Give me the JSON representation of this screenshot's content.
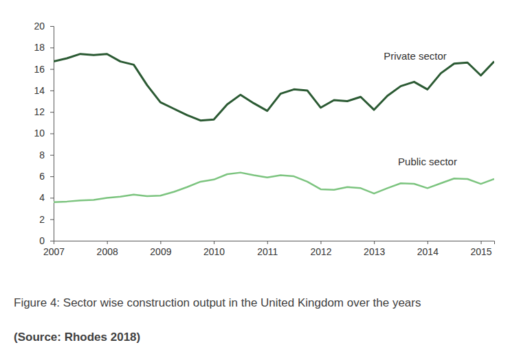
{
  "chart_data": {
    "type": "line",
    "title": "Figure 4: Sector wise construction output in the United Kingdom over the years",
    "source": "(Source: Rhodes 2018)",
    "x": [
      2007,
      2007.25,
      2007.5,
      2007.75,
      2008,
      2008.25,
      2008.5,
      2008.75,
      2009,
      2009.25,
      2009.5,
      2009.75,
      2010,
      2010.25,
      2010.5,
      2010.75,
      2011,
      2011.25,
      2011.5,
      2011.75,
      2012,
      2012.25,
      2012.5,
      2012.75,
      2013,
      2013.25,
      2013.5,
      2013.75,
      2014,
      2014.25,
      2014.5,
      2014.75,
      2015,
      2015.25
    ],
    "series": [
      {
        "name": "Private sector",
        "color": "#2b5a33",
        "values": [
          16.7,
          17.0,
          17.4,
          17.3,
          17.4,
          16.7,
          16.4,
          14.5,
          12.9,
          12.3,
          11.7,
          11.2,
          11.3,
          12.7,
          13.6,
          12.8,
          12.1,
          13.7,
          14.1,
          14.0,
          12.4,
          13.1,
          13.0,
          13.4,
          12.2,
          13.5,
          14.4,
          14.8,
          14.1,
          15.6,
          16.5,
          16.6,
          15.4,
          16.7
        ]
      },
      {
        "name": "Public sector",
        "color": "#7cc47f",
        "values": [
          3.6,
          3.65,
          3.75,
          3.8,
          4.0,
          4.1,
          4.3,
          4.15,
          4.2,
          4.55,
          5.0,
          5.5,
          5.7,
          6.2,
          6.35,
          6.1,
          5.9,
          6.1,
          6.0,
          5.5,
          4.8,
          4.75,
          5.0,
          4.9,
          4.4,
          4.9,
          5.35,
          5.3,
          4.9,
          5.35,
          5.8,
          5.75,
          5.3,
          5.75
        ]
      }
    ],
    "xlim": [
      2007,
      2015.25
    ],
    "xticks": [
      2007,
      2008,
      2009,
      2010,
      2011,
      2012,
      2013,
      2014,
      2015
    ],
    "ylim": [
      0,
      20
    ],
    "yticks": [
      0,
      2,
      4,
      6,
      8,
      10,
      12,
      14,
      16,
      18,
      20
    ],
    "grid": false
  }
}
